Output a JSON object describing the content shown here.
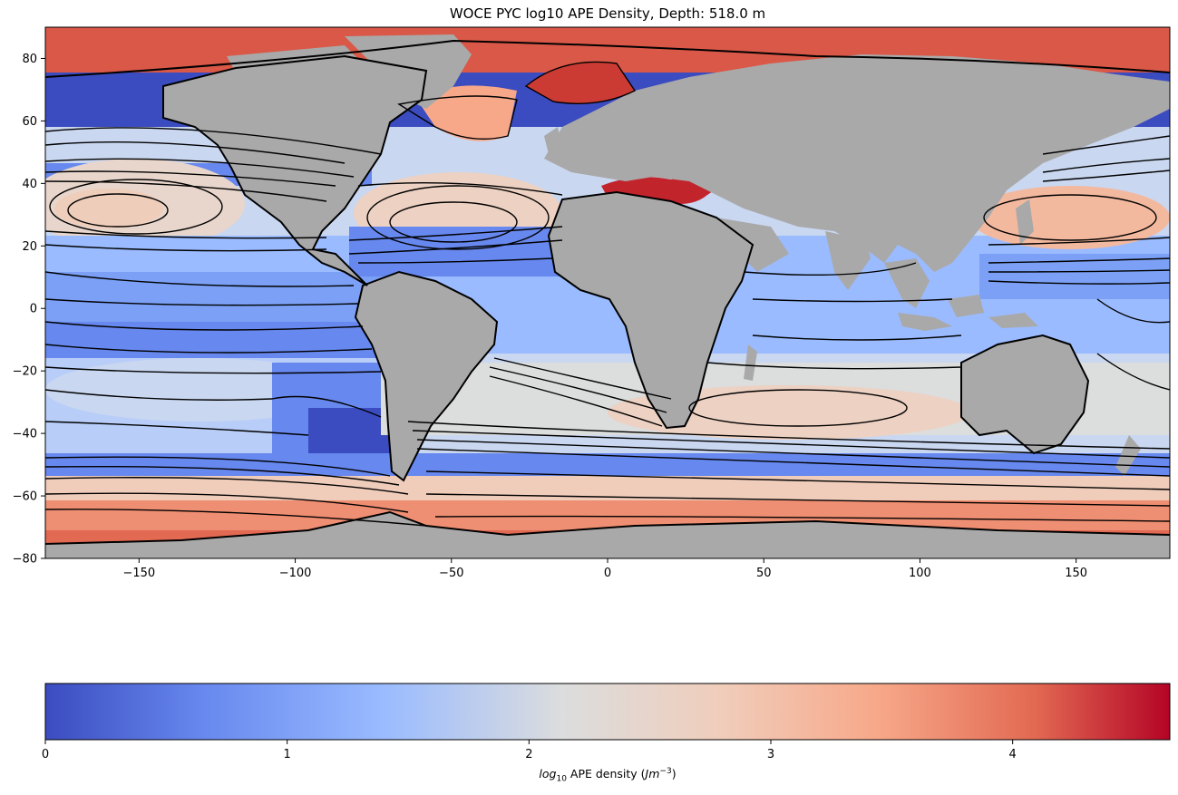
{
  "title": "WOCE PYC log10 APE Density, Depth: 518.0 m",
  "map": {
    "xlim": [
      -180,
      180
    ],
    "ylim": [
      -80,
      90
    ],
    "x_ticks": [
      -150,
      -100,
      -50,
      0,
      50,
      100,
      150
    ],
    "y_ticks": [
      80,
      60,
      40,
      20,
      0,
      -20,
      -40,
      -60,
      -80
    ],
    "land_color": "#a9a9a9",
    "contour_color": "#000000",
    "colormap": "coolwarm"
  },
  "colorbar": {
    "label_prefix": "log",
    "label_sub": "10",
    "label_mid": " APE density (",
    "label_unit": "Jm",
    "label_sup": "−3",
    "label_suffix": ")",
    "range": [
      0,
      4.65
    ],
    "ticks": [
      0,
      1,
      2,
      3,
      4
    ],
    "colors": [
      "#3b4cc0",
      "#6788ee",
      "#9abbff",
      "#c9d7f0",
      "#edd1c2",
      "#f7a889",
      "#e26952",
      "#b40426"
    ]
  }
}
